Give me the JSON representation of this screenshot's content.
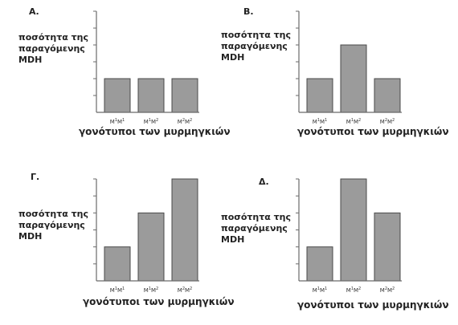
{
  "chart_data": [
    {
      "type": "bar",
      "panel_label": "Α.",
      "ylabel": [
        "ποσότητα της",
        "παραγόμενης",
        "MDH"
      ],
      "xlabel": "γονότυποι των μυρμηγκιών",
      "categories": [
        {
          "base1": "M",
          "sup1": "1",
          "base2": "M",
          "sup2": "1"
        },
        {
          "base1": "M",
          "sup1": "1",
          "base2": "M",
          "sup2": "2"
        },
        {
          "base1": "M",
          "sup1": "2",
          "base2": "M",
          "sup2": "2"
        }
      ],
      "values": [
        2,
        2,
        2
      ],
      "ylim": [
        0,
        6
      ],
      "yticks": [
        1,
        2,
        3,
        4,
        5,
        6
      ],
      "grid": false,
      "legend": "none"
    },
    {
      "type": "bar",
      "panel_label": "Β.",
      "ylabel": [
        "ποσότητα της",
        "παραγόμενης",
        "MDH"
      ],
      "xlabel": "γονότυποι των μυρμηγκιών",
      "categories": [
        {
          "base1": "M",
          "sup1": "1",
          "base2": "M",
          "sup2": "1"
        },
        {
          "base1": "M",
          "sup1": "1",
          "base2": "M",
          "sup2": "2"
        },
        {
          "base1": "M",
          "sup1": "2",
          "base2": "M",
          "sup2": "2"
        }
      ],
      "values": [
        2,
        4,
        2
      ],
      "ylim": [
        0,
        6
      ],
      "yticks": [
        1,
        2,
        3,
        4,
        5,
        6
      ],
      "grid": false,
      "legend": "none"
    },
    {
      "type": "bar",
      "panel_label": "Γ.",
      "ylabel": [
        "ποσότητα της",
        "παραγόμενης",
        "MDH"
      ],
      "xlabel": "γονότυποι των μυρμηγκιών",
      "categories": [
        {
          "base1": "M",
          "sup1": "1",
          "base2": "M",
          "sup2": "1"
        },
        {
          "base1": "M",
          "sup1": "1",
          "base2": "M",
          "sup2": "2"
        },
        {
          "base1": "M",
          "sup1": "2",
          "base2": "M",
          "sup2": "2"
        }
      ],
      "values": [
        2,
        4,
        6
      ],
      "ylim": [
        0,
        6
      ],
      "yticks": [
        1,
        2,
        3,
        4,
        5,
        6
      ],
      "grid": false,
      "legend": "none"
    },
    {
      "type": "bar",
      "panel_label": "Δ.",
      "ylabel": [
        "ποσότητα της",
        "παραγόμενης",
        "MDH"
      ],
      "xlabel": "γονότυποι των μυρμηγκιών",
      "categories": [
        {
          "base1": "M",
          "sup1": "1",
          "base2": "M",
          "sup2": "1"
        },
        {
          "base1": "M",
          "sup1": "1",
          "base2": "M",
          "sup2": "2"
        },
        {
          "base1": "M",
          "sup1": "2",
          "base2": "M",
          "sup2": "2"
        }
      ],
      "values": [
        2,
        6,
        4
      ],
      "ylim": [
        0,
        6
      ],
      "yticks": [
        1,
        2,
        3,
        4,
        5,
        6
      ],
      "grid": false,
      "legend": "none"
    }
  ]
}
